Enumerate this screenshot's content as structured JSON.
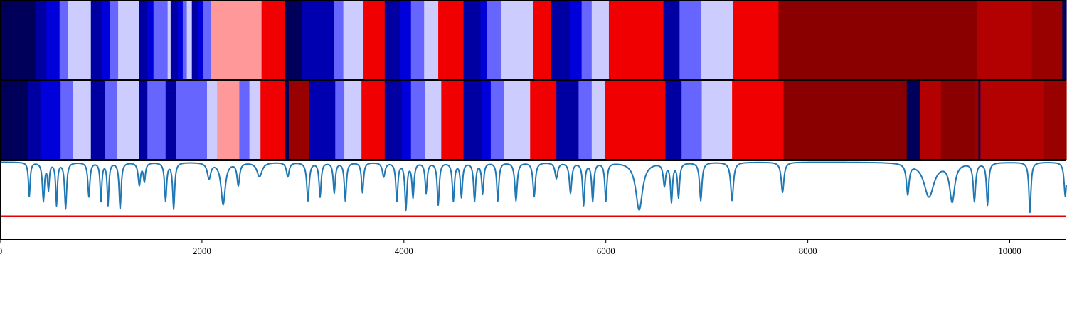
{
  "chart_data": {
    "type": "heatmap",
    "xlim": [
      0,
      10560
    ],
    "x_ticks": [
      0,
      2000,
      4000,
      6000,
      8000,
      10000
    ],
    "x_tick_labels": [
      "0",
      "2000",
      "4000",
      "6000",
      "8000",
      "10000"
    ],
    "colormap": "seismic",
    "rows": [
      {
        "segments": [
          [
            0,
            350,
            0.02
          ],
          [
            350,
            460,
            0.12
          ],
          [
            460,
            590,
            0.2
          ],
          [
            590,
            670,
            0.35
          ],
          [
            670,
            900,
            0.45
          ],
          [
            900,
            1010,
            0.12
          ],
          [
            1010,
            1090,
            0.2
          ],
          [
            1090,
            1170,
            0.35
          ],
          [
            1170,
            1380,
            0.45
          ],
          [
            1380,
            1460,
            0.12
          ],
          [
            1460,
            1520,
            0.2
          ],
          [
            1520,
            1660,
            0.35
          ],
          [
            1660,
            1690,
            0.45
          ],
          [
            1690,
            1760,
            0.12
          ],
          [
            1760,
            1810,
            0.2
          ],
          [
            1810,
            1850,
            0.35
          ],
          [
            1850,
            1900,
            0.45
          ],
          [
            1900,
            1960,
            0.12
          ],
          [
            1960,
            2010,
            0.2
          ],
          [
            2010,
            2090,
            0.35
          ],
          [
            2090,
            2590,
            0.6
          ],
          [
            2590,
            2820,
            0.78
          ],
          [
            2820,
            2990,
            0.02
          ],
          [
            2990,
            3310,
            0.14
          ],
          [
            3310,
            3400,
            0.35
          ],
          [
            3400,
            3600,
            0.45
          ],
          [
            3600,
            3810,
            0.78
          ],
          [
            3810,
            3960,
            0.12
          ],
          [
            3960,
            4070,
            0.2
          ],
          [
            4070,
            4200,
            0.35
          ],
          [
            4200,
            4340,
            0.45
          ],
          [
            4340,
            4590,
            0.78
          ],
          [
            4590,
            4760,
            0.12
          ],
          [
            4760,
            4820,
            0.2
          ],
          [
            4820,
            4960,
            0.35
          ],
          [
            4960,
            5280,
            0.45
          ],
          [
            5280,
            5460,
            0.78
          ],
          [
            5460,
            5650,
            0.12
          ],
          [
            5650,
            5760,
            0.2
          ],
          [
            5760,
            5860,
            0.35
          ],
          [
            5860,
            6030,
            0.45
          ],
          [
            6030,
            6570,
            0.78
          ],
          [
            6570,
            6730,
            0.12
          ],
          [
            6730,
            6940,
            0.35
          ],
          [
            6940,
            7260,
            0.45
          ],
          [
            7260,
            7710,
            0.78
          ],
          [
            7710,
            9680,
            0.98
          ],
          [
            9680,
            10220,
            0.9
          ],
          [
            10220,
            10520,
            0.95
          ],
          [
            10520,
            10560,
            0.02
          ]
        ]
      },
      {
        "segments": [
          [
            0,
            280,
            0.02
          ],
          [
            280,
            400,
            0.12
          ],
          [
            400,
            600,
            0.2
          ],
          [
            600,
            720,
            0.35
          ],
          [
            720,
            900,
            0.45
          ],
          [
            900,
            1040,
            0.12
          ],
          [
            1040,
            1160,
            0.35
          ],
          [
            1160,
            1380,
            0.45
          ],
          [
            1380,
            1460,
            0.12
          ],
          [
            1460,
            1640,
            0.35
          ],
          [
            1640,
            1740,
            0.12
          ],
          [
            1740,
            2050,
            0.35
          ],
          [
            2050,
            2150,
            0.45
          ],
          [
            2150,
            2370,
            0.6
          ],
          [
            2370,
            2470,
            0.35
          ],
          [
            2470,
            2580,
            0.45
          ],
          [
            2580,
            2820,
            0.78
          ],
          [
            2820,
            2860,
            0.02
          ],
          [
            2860,
            3060,
            0.95
          ],
          [
            3060,
            3320,
            0.14
          ],
          [
            3320,
            3410,
            0.35
          ],
          [
            3410,
            3580,
            0.45
          ],
          [
            3580,
            3810,
            0.78
          ],
          [
            3810,
            3980,
            0.12
          ],
          [
            3980,
            4070,
            0.2
          ],
          [
            4070,
            4210,
            0.35
          ],
          [
            4210,
            4370,
            0.45
          ],
          [
            4370,
            4590,
            0.78
          ],
          [
            4590,
            4770,
            0.12
          ],
          [
            4770,
            4860,
            0.2
          ],
          [
            4860,
            4990,
            0.35
          ],
          [
            4990,
            5250,
            0.45
          ],
          [
            5250,
            5510,
            0.78
          ],
          [
            5510,
            5730,
            0.12
          ],
          [
            5730,
            5860,
            0.35
          ],
          [
            5860,
            5990,
            0.45
          ],
          [
            5990,
            6590,
            0.78
          ],
          [
            6590,
            6750,
            0.12
          ],
          [
            6750,
            6950,
            0.35
          ],
          [
            6950,
            7250,
            0.45
          ],
          [
            7250,
            7760,
            0.78
          ],
          [
            7760,
            8980,
            0.98
          ],
          [
            8980,
            9110,
            0.02
          ],
          [
            9110,
            9320,
            0.9
          ],
          [
            9320,
            9650,
            0.98
          ],
          [
            9650,
            9690,
            0.95
          ],
          [
            9690,
            9710,
            0.02
          ],
          [
            9710,
            10340,
            0.9
          ],
          [
            10340,
            10560,
            0.95
          ]
        ]
      }
    ],
    "line": {
      "color": "#1f77b4",
      "baseline": 0.98,
      "dips": [
        [
          290,
          0.55,
          10
        ],
        [
          430,
          0.5,
          12
        ],
        [
          480,
          0.65,
          10
        ],
        [
          560,
          0.45,
          10
        ],
        [
          650,
          0.4,
          12
        ],
        [
          880,
          0.55,
          12
        ],
        [
          1000,
          0.5,
          10
        ],
        [
          1070,
          0.45,
          10
        ],
        [
          1190,
          0.4,
          12
        ],
        [
          1380,
          0.7,
          14
        ],
        [
          1430,
          0.75,
          12
        ],
        [
          1640,
          0.5,
          12
        ],
        [
          1720,
          0.4,
          12
        ],
        [
          2070,
          0.78,
          20
        ],
        [
          2210,
          0.45,
          25
        ],
        [
          2360,
          0.7,
          15
        ],
        [
          2570,
          0.8,
          30
        ],
        [
          2850,
          0.8,
          16
        ],
        [
          3050,
          0.5,
          14
        ],
        [
          3170,
          0.55,
          12
        ],
        [
          3310,
          0.6,
          12
        ],
        [
          3420,
          0.5,
          12
        ],
        [
          3590,
          0.6,
          12
        ],
        [
          3800,
          0.8,
          16
        ],
        [
          3930,
          0.5,
          12
        ],
        [
          4020,
          0.4,
          12
        ],
        [
          4090,
          0.55,
          12
        ],
        [
          4220,
          0.6,
          12
        ],
        [
          4340,
          0.45,
          12
        ],
        [
          4490,
          0.5,
          12
        ],
        [
          4570,
          0.55,
          12
        ],
        [
          4700,
          0.5,
          12
        ],
        [
          4780,
          0.6,
          12
        ],
        [
          4930,
          0.5,
          12
        ],
        [
          5110,
          0.5,
          14
        ],
        [
          5290,
          0.55,
          14
        ],
        [
          5510,
          0.78,
          16
        ],
        [
          5650,
          0.6,
          14
        ],
        [
          5780,
          0.45,
          12
        ],
        [
          5870,
          0.5,
          12
        ],
        [
          6000,
          0.5,
          12
        ],
        [
          6330,
          0.38,
          40
        ],
        [
          6580,
          0.7,
          14
        ],
        [
          6650,
          0.5,
          12
        ],
        [
          6720,
          0.55,
          12
        ],
        [
          6940,
          0.5,
          14
        ],
        [
          7250,
          0.5,
          16
        ],
        [
          7750,
          0.6,
          16
        ],
        [
          8990,
          0.6,
          16
        ],
        [
          9200,
          0.55,
          60
        ],
        [
          9430,
          0.5,
          30
        ],
        [
          9650,
          0.5,
          14
        ],
        [
          9780,
          0.45,
          12
        ],
        [
          10200,
          0.35,
          12
        ],
        [
          10550,
          0.55,
          14
        ]
      ]
    },
    "threshold": {
      "value": 0.3,
      "color": "#e60000"
    },
    "grid": false,
    "legend": "none"
  }
}
